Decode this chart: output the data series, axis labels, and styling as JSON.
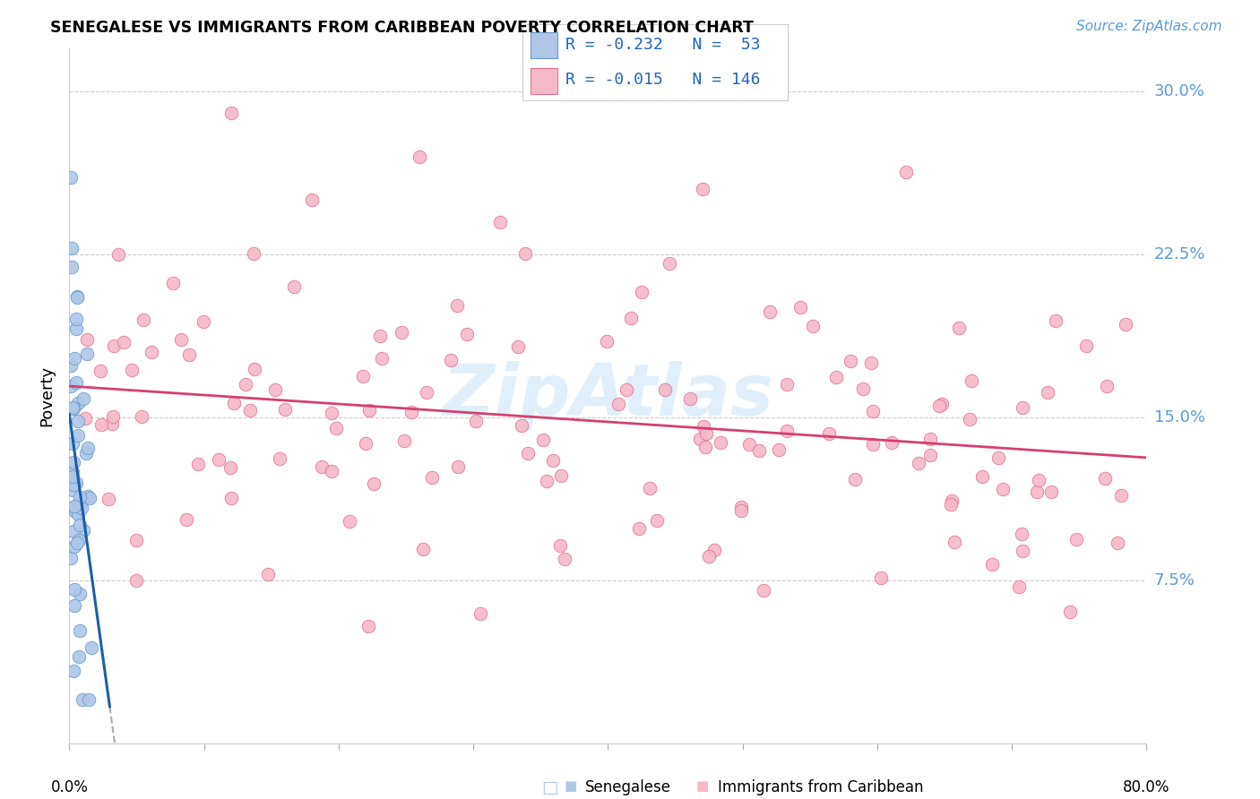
{
  "title": "SENEGALESE VS IMMIGRANTS FROM CARIBBEAN POVERTY CORRELATION CHART",
  "source": "Source: ZipAtlas.com",
  "ylabel": "Poverty",
  "yticks_labels": [
    "7.5%",
    "15.0%",
    "22.5%",
    "30.0%"
  ],
  "ytick_vals": [
    0.075,
    0.15,
    0.225,
    0.3
  ],
  "xlim": [
    0.0,
    0.8
  ],
  "ylim": [
    0.0,
    0.32
  ],
  "legend_blue_R": "-0.232",
  "legend_blue_N": "53",
  "legend_pink_R": "-0.015",
  "legend_pink_N": "146",
  "watermark": "ZipAtlas",
  "blue_fill": "#aec6e8",
  "blue_edge": "#6699cc",
  "pink_fill": "#f5b8c8",
  "pink_edge": "#e07090",
  "trendline_blue": "#1a5fa8",
  "trendline_pink": "#d44070",
  "legend_text_color": "#333333",
  "legend_value_color": "#2266bb",
  "right_label_color": "#5b9bd5",
  "source_color": "#5b9bd5",
  "grid_color": "#cccccc",
  "background": "#ffffff"
}
